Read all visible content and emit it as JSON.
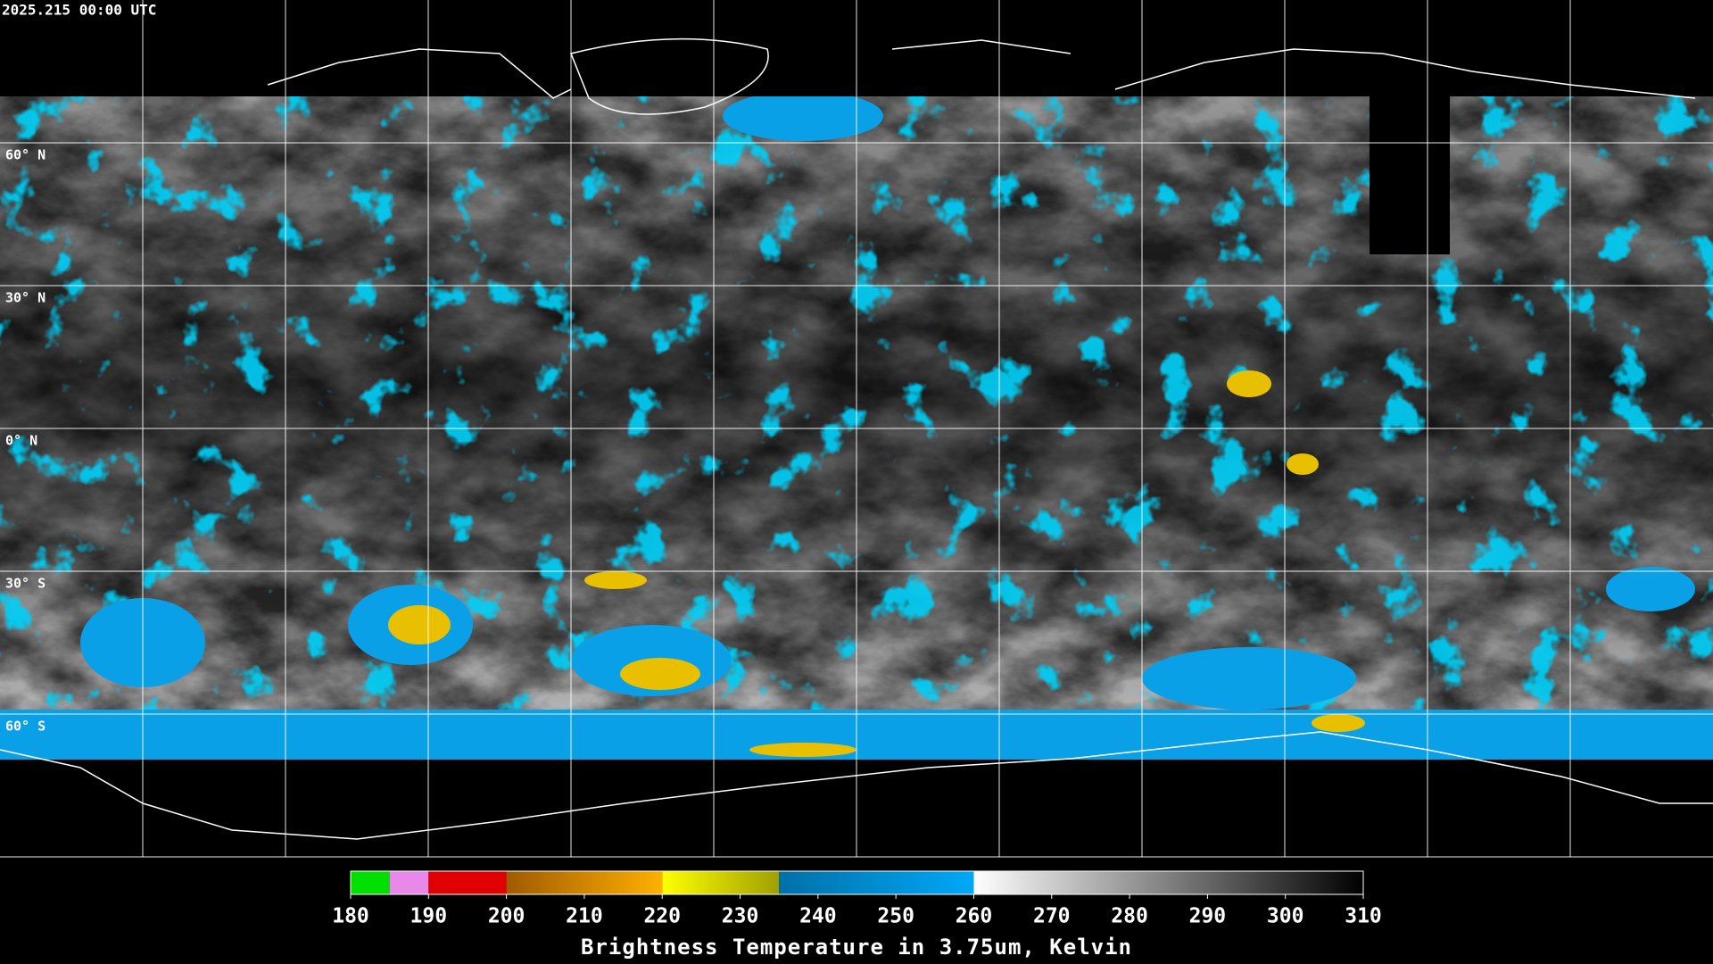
{
  "header": {
    "timestamp": "2025.215 00:00 UTC"
  },
  "latitude_labels": [
    "60° N",
    "30° N",
    "0° N",
    "30° S",
    "60° S"
  ],
  "colorbar": {
    "title": "Brightness Temperature in 3.75um, Kelvin",
    "range": [
      180,
      310
    ],
    "ticks": [
      180,
      190,
      200,
      210,
      220,
      230,
      240,
      250,
      260,
      270,
      280,
      290,
      300,
      310
    ],
    "segments": [
      {
        "from": 180,
        "to": 185,
        "colors": [
          "#00e000",
          "#00e000"
        ]
      },
      {
        "from": 185,
        "to": 190,
        "colors": [
          "#e888e8",
          "#e888e8"
        ]
      },
      {
        "from": 190,
        "to": 200,
        "colors": [
          "#e00000",
          "#e00000"
        ]
      },
      {
        "from": 200,
        "to": 220,
        "colors": [
          "#a05a00",
          "#ffb000"
        ]
      },
      {
        "from": 220,
        "to": 235,
        "colors": [
          "#ffff00",
          "#a0a000"
        ]
      },
      {
        "from": 235,
        "to": 260,
        "colors": [
          "#0070a8",
          "#00a8f8"
        ]
      },
      {
        "from": 260,
        "to": 310,
        "colors": [
          "#ffffff",
          "#000000"
        ]
      }
    ]
  }
}
